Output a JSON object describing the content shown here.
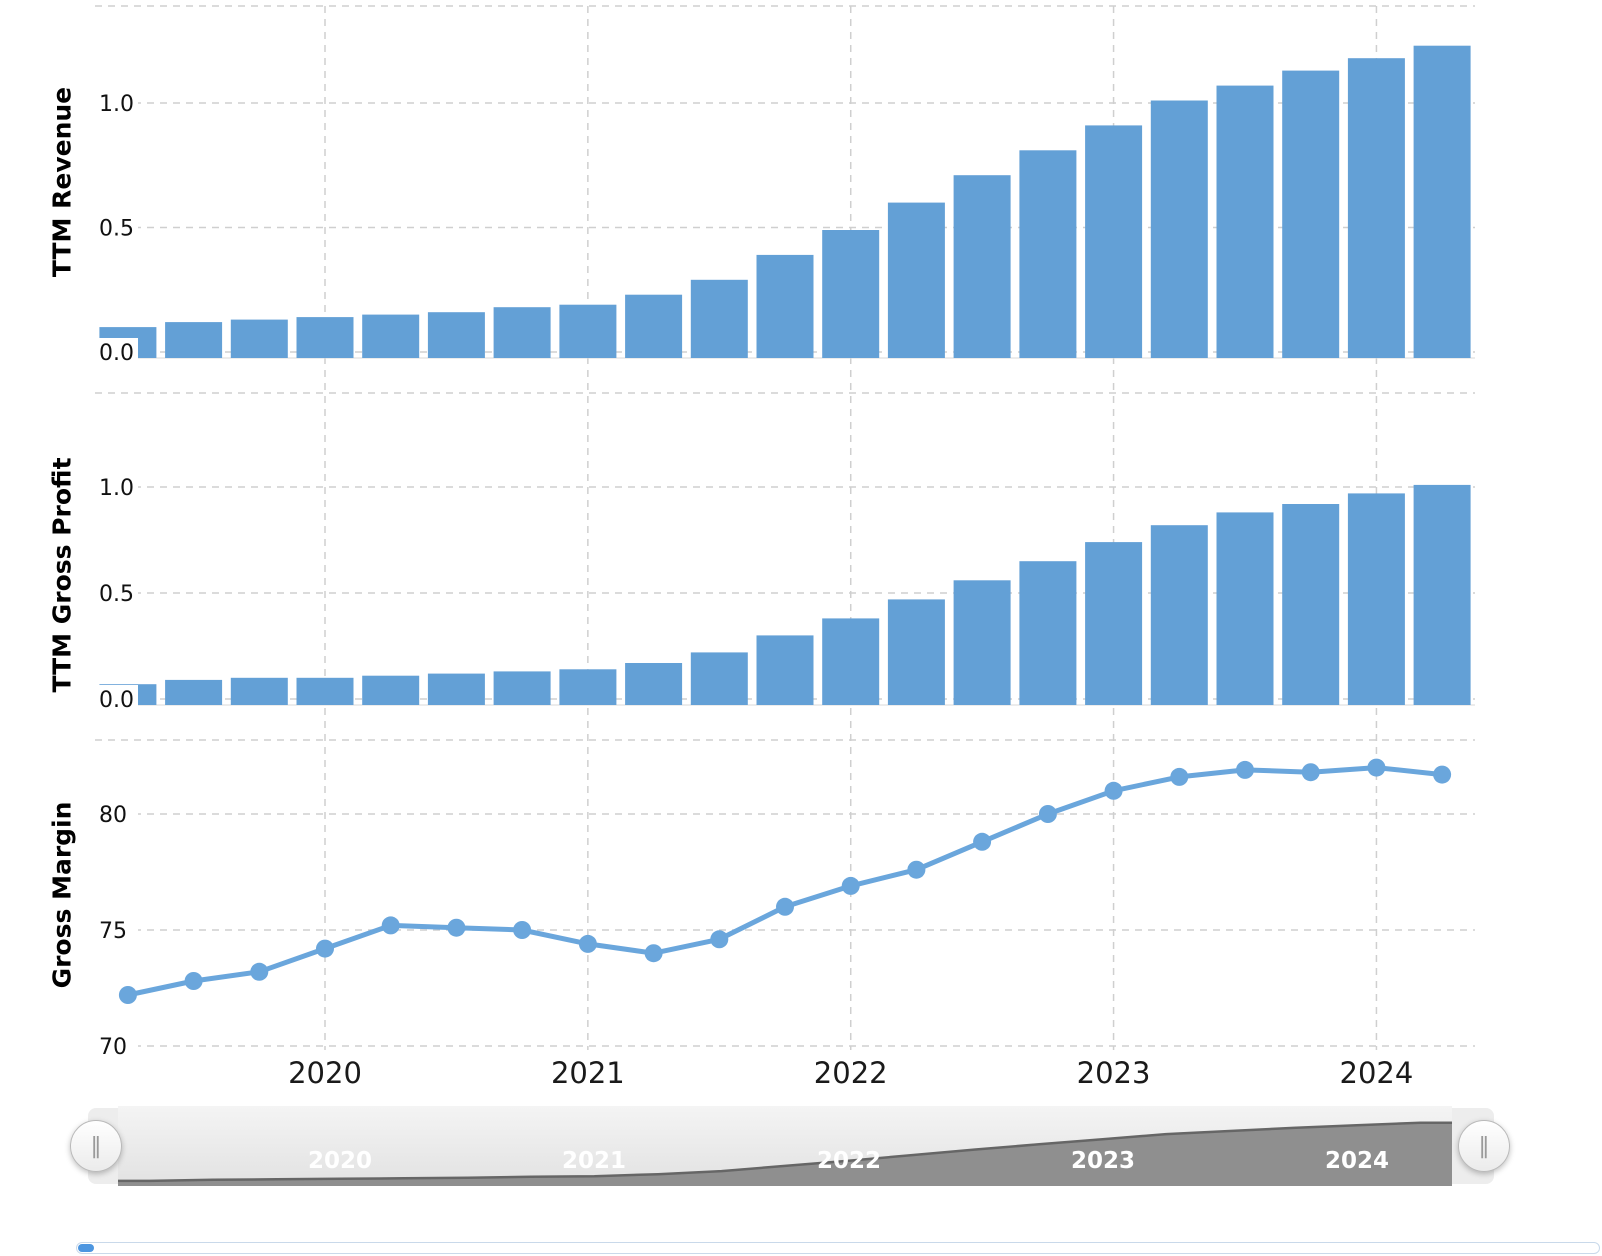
{
  "chart_data": [
    {
      "type": "bar",
      "ylabel": "TTM Revenue",
      "x": [
        "2019-Q2",
        "2019-Q3",
        "2019-Q4",
        "2020-Q1",
        "2020-Q2",
        "2020-Q3",
        "2020-Q4",
        "2021-Q1",
        "2021-Q2",
        "2021-Q3",
        "2021-Q4",
        "2022-Q1",
        "2022-Q2",
        "2022-Q3",
        "2022-Q4",
        "2023-Q1",
        "2023-Q2",
        "2023-Q3",
        "2023-Q4",
        "2024-Q1",
        "2024-Q2"
      ],
      "values": [
        0.1,
        0.12,
        0.13,
        0.14,
        0.15,
        0.16,
        0.18,
        0.19,
        0.23,
        0.29,
        0.39,
        0.49,
        0.6,
        0.71,
        0.81,
        0.91,
        1.01,
        1.07,
        1.13,
        1.18,
        1.23
      ],
      "ytick_labels": [
        "0.0",
        "0.5",
        "1.0"
      ],
      "ylim": [
        0,
        1.4
      ],
      "grid": true,
      "legend": "none"
    },
    {
      "type": "bar",
      "ylabel": "TTM Gross Profit",
      "x": [
        "2019-Q2",
        "2019-Q3",
        "2019-Q4",
        "2020-Q1",
        "2020-Q2",
        "2020-Q3",
        "2020-Q4",
        "2021-Q1",
        "2021-Q2",
        "2021-Q3",
        "2021-Q4",
        "2022-Q1",
        "2022-Q2",
        "2022-Q3",
        "2022-Q4",
        "2023-Q1",
        "2023-Q2",
        "2023-Q3",
        "2023-Q4",
        "2024-Q1",
        "2024-Q2"
      ],
      "values": [
        0.07,
        0.09,
        0.1,
        0.1,
        0.11,
        0.12,
        0.13,
        0.14,
        0.17,
        0.22,
        0.3,
        0.38,
        0.47,
        0.56,
        0.65,
        0.74,
        0.82,
        0.88,
        0.92,
        0.97,
        1.01
      ],
      "ytick_labels": [
        "0.0",
        "0.5",
        "1.0"
      ],
      "ylim": [
        0,
        1.15
      ],
      "grid": true,
      "legend": "none"
    },
    {
      "type": "line",
      "ylabel": "Gross Margin",
      "x": [
        "2019-Q2",
        "2019-Q3",
        "2019-Q4",
        "2020-Q1",
        "2020-Q2",
        "2020-Q3",
        "2020-Q4",
        "2021-Q1",
        "2021-Q2",
        "2021-Q3",
        "2021-Q4",
        "2022-Q1",
        "2022-Q2",
        "2022-Q3",
        "2022-Q4",
        "2023-Q1",
        "2023-Q2",
        "2023-Q3",
        "2023-Q4",
        "2024-Q1",
        "2024-Q2"
      ],
      "values": [
        72.2,
        72.8,
        73.2,
        74.2,
        75.2,
        75.1,
        75.0,
        74.4,
        74.0,
        74.6,
        76.0,
        76.9,
        77.6,
        78.8,
        80.0,
        81.0,
        81.6,
        81.9,
        81.8,
        82.0,
        81.7
      ],
      "ytick_labels": [
        "70",
        "75",
        "80"
      ],
      "ylim": [
        70,
        84
      ],
      "grid": true,
      "legend": "none"
    }
  ],
  "x_axis": {
    "year_labels": [
      "2020",
      "2021",
      "2022",
      "2023",
      "2024"
    ]
  },
  "navigator": {
    "year_labels": [
      "2020",
      "2021",
      "2022",
      "2023",
      "2024"
    ],
    "handle_glyph": "‖"
  },
  "colors": {
    "bar": "#63a0d6",
    "line": "#6aa6dc",
    "grid": "#cfcfcf",
    "axis_line": "#dadada",
    "tick_text": "#111111",
    "year_text": "#1a1a1a",
    "nav_area": "#8f8f8f",
    "nav_area_edge": "#666666",
    "scroll_thumb": "#4d96e0"
  }
}
